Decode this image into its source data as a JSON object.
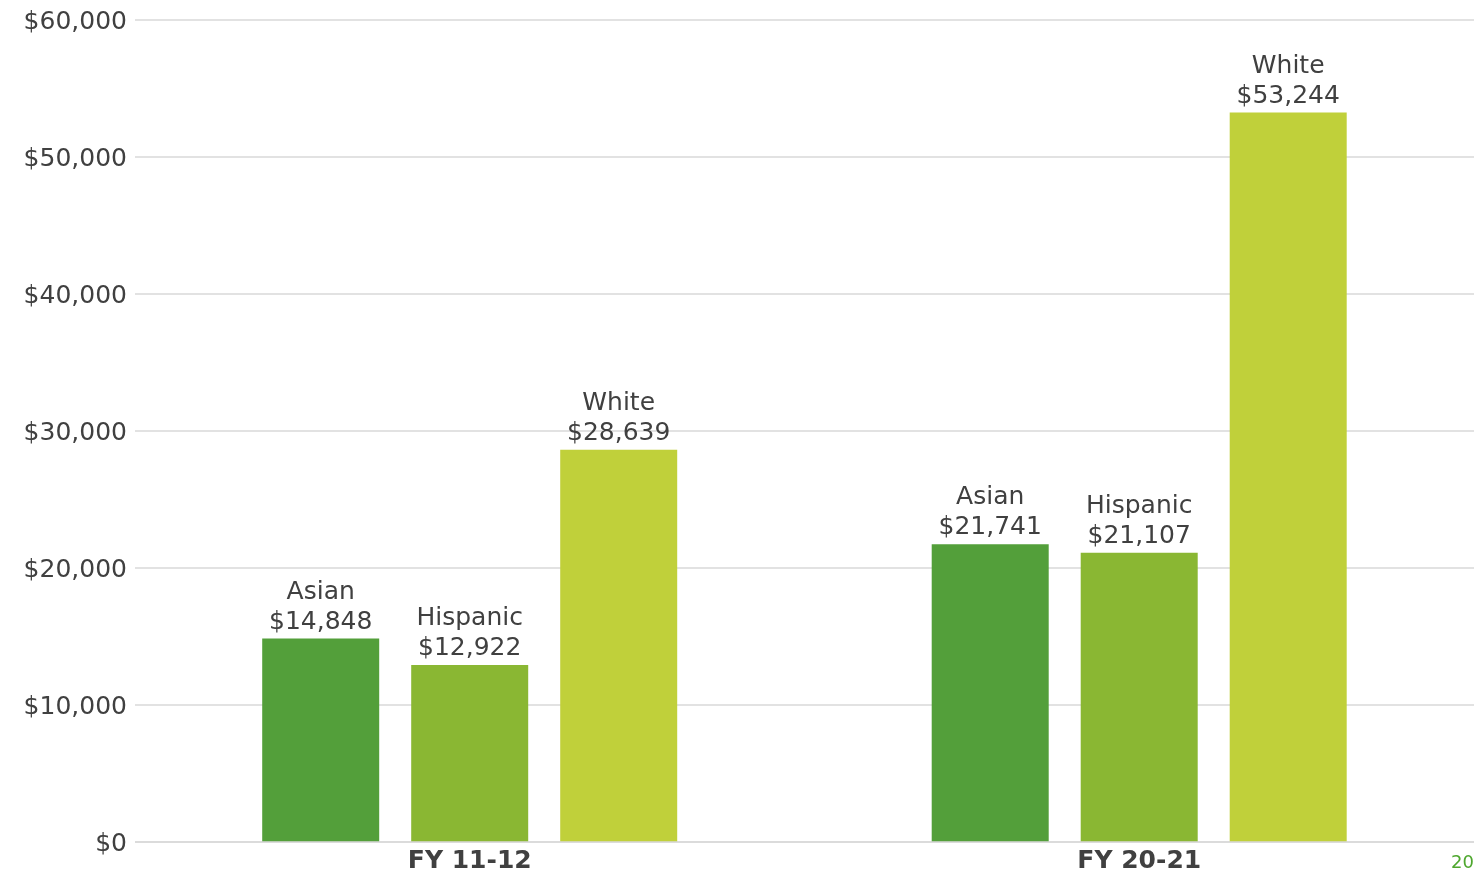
{
  "chart_data": {
    "type": "bar",
    "categories": [
      "FY 11-12",
      "FY 20-21"
    ],
    "series": [
      {
        "name": "Asian",
        "color": "#539f3a",
        "values": [
          14848,
          21741
        ],
        "value_labels": [
          "$14,848",
          "$21,741"
        ]
      },
      {
        "name": "Hispanic",
        "color": "#8ab733",
        "values": [
          12922,
          21107
        ],
        "value_labels": [
          "$12,922",
          "$21,107"
        ]
      },
      {
        "name": "White",
        "color": "#c0d03a",
        "values": [
          28639,
          53244
        ],
        "value_labels": [
          "$28,639",
          "$53,244"
        ]
      }
    ],
    "ylim": [
      0,
      60000
    ],
    "yticks": [
      {
        "value": 0,
        "label": "$0"
      },
      {
        "value": 10000,
        "label": "$10,000"
      },
      {
        "value": 20000,
        "label": "$20,000"
      },
      {
        "value": 30000,
        "label": "$30,000"
      },
      {
        "value": 40000,
        "label": "$40,000"
      },
      {
        "value": 50000,
        "label": "$50,000"
      },
      {
        "value": 60000,
        "label": "$60,000"
      }
    ],
    "grid": "y",
    "legend": false,
    "annotations": [
      "20"
    ]
  }
}
